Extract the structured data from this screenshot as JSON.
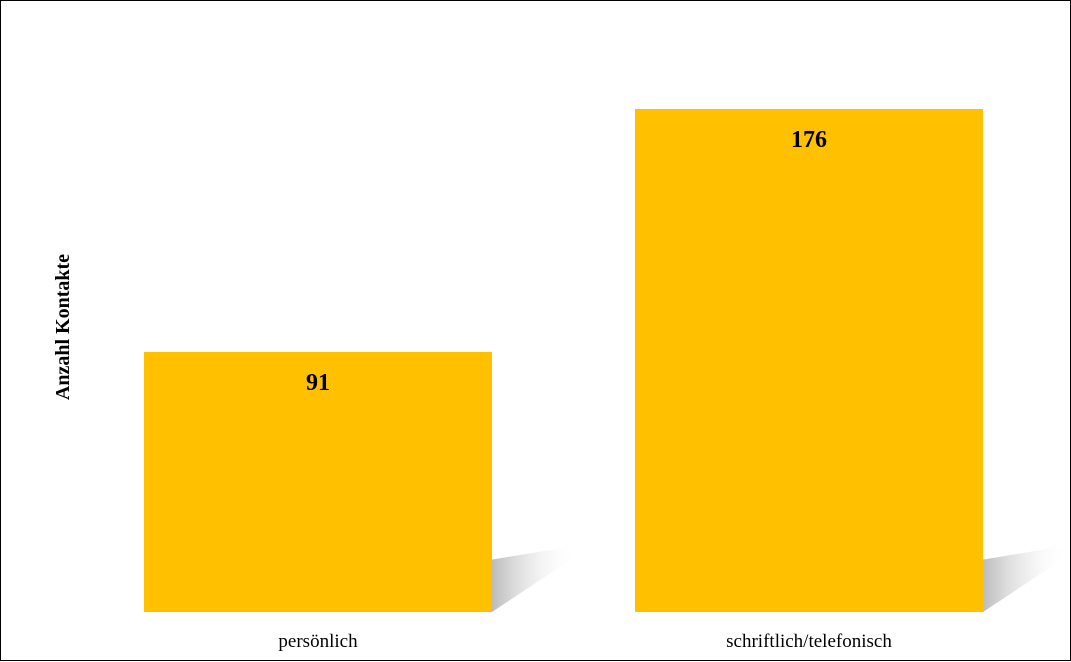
{
  "chart_data": {
    "type": "bar",
    "title": "",
    "xlabel": "",
    "ylabel": "Anzahl Kontakte",
    "categories": [
      "persönlich",
      "schriftlich/telefonisch"
    ],
    "values": [
      91,
      176
    ],
    "data_labels": [
      "91",
      "176"
    ],
    "ylim": [
      0,
      176
    ],
    "grid": false,
    "legend": "none",
    "colors": {
      "bar": "#FFC000",
      "shadow": "#c8c8c8",
      "frame": "#000000"
    }
  }
}
